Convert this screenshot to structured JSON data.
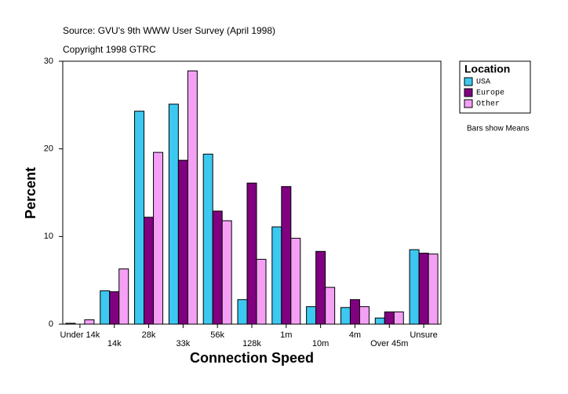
{
  "chart_data": {
    "type": "bar",
    "title": "Source: GVU's 9th WWW User Survey (April 1998)",
    "subtitle": "Copyright 1998 GTRC",
    "x_label": "Connection Speed",
    "y_label": "Percent",
    "annotation": "Bars show Means",
    "legend_title": "Location",
    "legend_position": "right",
    "categories": [
      "Under 14k",
      "14k",
      "28k",
      "33k",
      "56k",
      "128k",
      "1m",
      "10m",
      "4m",
      "Over 45m",
      "Unsure"
    ],
    "series": [
      {
        "name": "USA",
        "color": "#3cc8f0",
        "values": [
          0.1,
          3.8,
          24.3,
          25.1,
          19.4,
          2.8,
          11.1,
          2.0,
          1.9,
          0.7,
          8.5
        ]
      },
      {
        "name": "Europe",
        "color": "#800080",
        "values": [
          0,
          3.7,
          12.2,
          18.7,
          12.9,
          16.1,
          15.7,
          8.3,
          2.8,
          1.4,
          8.1
        ]
      },
      {
        "name": "Other",
        "color": "#f4a0f4",
        "values": [
          0.5,
          6.3,
          19.6,
          28.9,
          11.8,
          7.4,
          9.8,
          4.2,
          2.0,
          1.4,
          8.0
        ]
      }
    ],
    "ylim": [
      0,
      30
    ],
    "yticks": [
      0,
      10,
      20,
      30
    ],
    "grid": false
  }
}
